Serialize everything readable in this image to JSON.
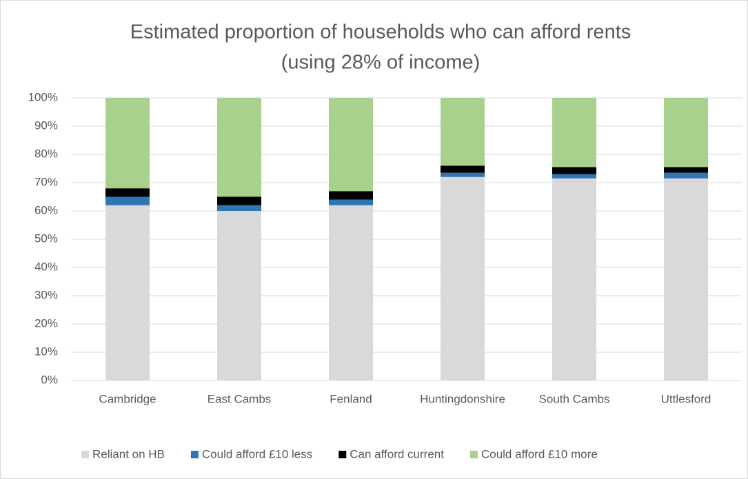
{
  "chart_data": {
    "type": "stacked_bar",
    "title": [
      "Estimated proportion of households who can afford rents",
      "(using 28% of income)"
    ],
    "categories": [
      "Cambridge",
      "East Cambs",
      "Fenland",
      "Huntingdonshire",
      "South Cambs",
      "Uttlesford"
    ],
    "series": [
      {
        "name": "Reliant on HB",
        "color": "#d9d9d9",
        "values": [
          62,
          60,
          62,
          72,
          71.5,
          71.5
        ]
      },
      {
        "name": "Could afford £10 less",
        "color": "#2e75b6",
        "values": [
          3,
          2,
          2,
          1.5,
          1.5,
          2
        ]
      },
      {
        "name": "Can afford current",
        "color": "#000000",
        "values": [
          3,
          3,
          3,
          2.5,
          2.5,
          2
        ]
      },
      {
        "name": "Could afford £10 more",
        "color": "#a9d18e",
        "values": [
          32,
          35,
          33,
          24,
          24.5,
          24.5
        ]
      }
    ],
    "ylim": [
      0,
      100
    ],
    "yticks": [
      {
        "value": 0,
        "label": "0%"
      },
      {
        "value": 10,
        "label": "10%"
      },
      {
        "value": 20,
        "label": "20%"
      },
      {
        "value": 30,
        "label": "30%"
      },
      {
        "value": 40,
        "label": "40%"
      },
      {
        "value": 50,
        "label": "50%"
      },
      {
        "value": 60,
        "label": "60%"
      },
      {
        "value": 70,
        "label": "70%"
      },
      {
        "value": 80,
        "label": "80%"
      },
      {
        "value": 90,
        "label": "90%"
      },
      {
        "value": 100,
        "label": "100%"
      }
    ],
    "grid": true,
    "legend": "bottom"
  }
}
